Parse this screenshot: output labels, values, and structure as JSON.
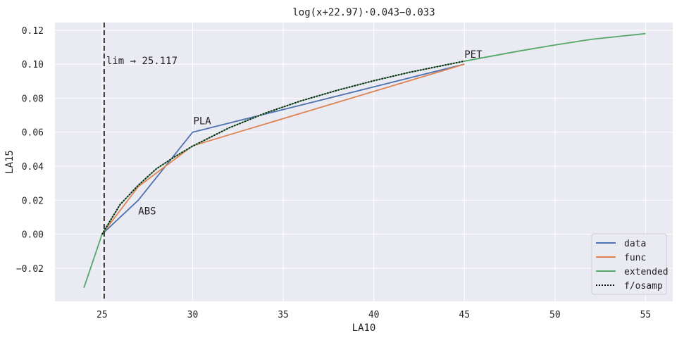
{
  "chart_data": {
    "type": "line",
    "title": "log(x+22.97)·0.043−0.033",
    "xlabel": "LA10",
    "ylabel": "LA15",
    "xlim": [
      22.4,
      56.5
    ],
    "ylim": [
      -0.0395,
      0.1245
    ],
    "xticks": [
      25,
      30,
      35,
      40,
      45,
      50,
      55
    ],
    "yticks": [
      -0.02,
      0.0,
      0.02,
      0.04,
      0.06,
      0.08,
      0.1,
      0.12
    ],
    "xtick_labels": [
      "25",
      "30",
      "35",
      "40",
      "45",
      "50",
      "55"
    ],
    "ytick_labels": [
      "−0.02",
      "0.00",
      "0.02",
      "0.04",
      "0.06",
      "0.08",
      "0.10",
      "0.12"
    ],
    "grid": true,
    "legend_position": "lower-right",
    "vline": {
      "x": 25.117,
      "label": "lim → 25.117"
    },
    "series": [
      {
        "name": "data",
        "color": "#4C72B0",
        "style": "solid",
        "x": [
          25,
          27,
          30,
          45
        ],
        "y": [
          0.0,
          0.02,
          0.06,
          0.1
        ]
      },
      {
        "name": "func",
        "color": "#DD8452",
        "style": "solid",
        "x": [
          25,
          27,
          30,
          45
        ],
        "y": [
          0.0,
          0.028,
          0.052,
          0.1
        ]
      },
      {
        "name": "extended",
        "color": "#55A868",
        "style": "solid",
        "x": [
          24,
          25,
          26,
          27,
          28,
          29,
          30,
          32,
          34,
          36,
          38,
          40,
          42,
          45,
          48,
          50,
          52,
          55
        ],
        "y": [
          -0.0315,
          0.0,
          0.0175,
          0.0288,
          0.0385,
          0.0455,
          0.0518,
          0.0625,
          0.0712,
          0.0785,
          0.0847,
          0.0903,
          0.0953,
          0.1018,
          0.1077,
          0.1113,
          0.1146,
          0.118
        ]
      },
      {
        "name": "f/osamp",
        "color": "#111111",
        "style": "dotted",
        "x": [
          25,
          26,
          27,
          28,
          29,
          30,
          32,
          34,
          36,
          38,
          40,
          42,
          45
        ],
        "y": [
          0.0,
          0.0175,
          0.0288,
          0.0385,
          0.0455,
          0.0518,
          0.0625,
          0.0712,
          0.0785,
          0.0847,
          0.0903,
          0.0953,
          0.1018
        ]
      }
    ],
    "annotations": [
      {
        "text": "ABS",
        "x": 27,
        "y": 0.02
      },
      {
        "text": "PLA",
        "x": 30,
        "y": 0.06
      },
      {
        "text": "PET",
        "x": 45,
        "y": 0.1
      }
    ]
  }
}
